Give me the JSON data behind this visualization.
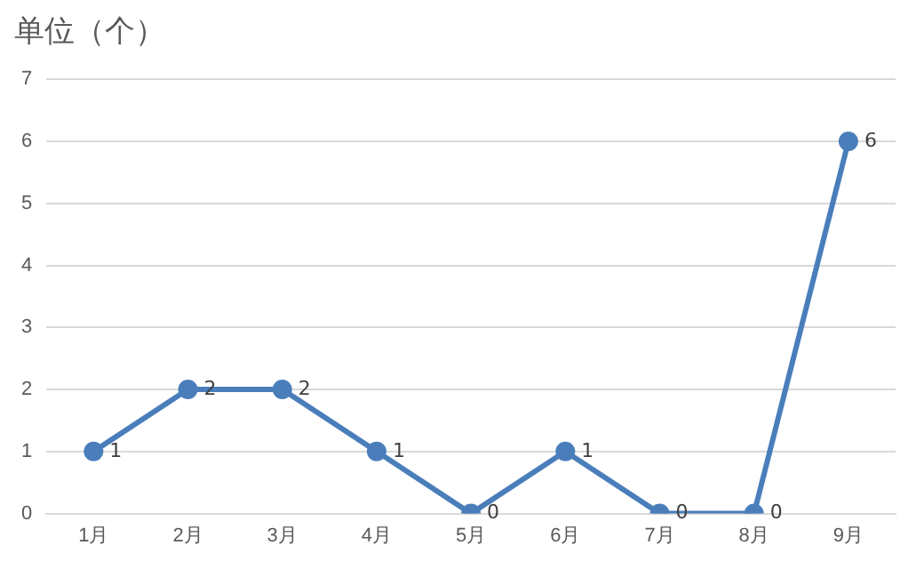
{
  "chart_data": {
    "type": "line",
    "title": "单位（个）",
    "categories": [
      "1月",
      "2月",
      "3月",
      "4月",
      "5月",
      "6月",
      "7月",
      "8月",
      "9月"
    ],
    "values": [
      1,
      2,
      2,
      1,
      0,
      1,
      0,
      0,
      6
    ],
    "color": "#4a7ebb",
    "ylim": [
      0,
      7
    ],
    "yticks": [
      0,
      1,
      2,
      3,
      4,
      5,
      6,
      7
    ],
    "grid": "y",
    "marker": "circle",
    "line_style": "solid",
    "data_labels": true,
    "legend": false
  }
}
